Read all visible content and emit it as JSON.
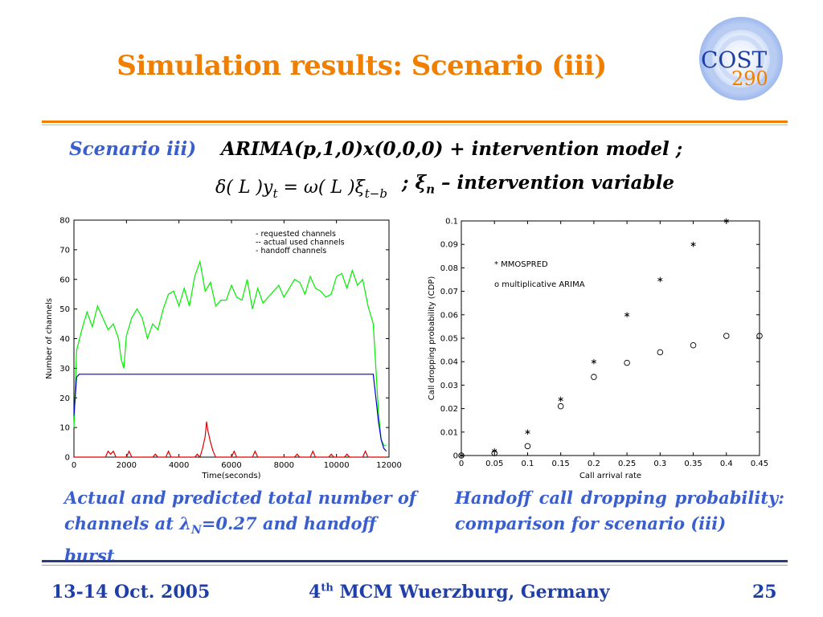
{
  "slide": {
    "title": "Simulation results: Scenario (iii)",
    "scenario_label": "Scenario iii)",
    "model_text": "ARIMA(p,1,0)x(0,0,0) +  intervention model ;",
    "formula": "δ( L )yₜ = ω( L )ξₜ₋ᵦ",
    "intervention_text": ";  ξ",
    "intervention_sub": "n",
    "intervention_rest": " – intervention variable",
    "caption_left_1": "Actual and predicted total number of",
    "caption_left_2a": "channels at λ",
    "caption_left_2sub": "N",
    "caption_left_2b": "=0.27 and handoff burst",
    "caption_right": "Handoff call dropping probability: comparison for scenario (iii)",
    "footer_date": "13-14 Oct. 2005",
    "footer_conf_pre": "4",
    "footer_conf_sup": "th",
    "footer_conf_post": " MCM Wuerzburg, Germany",
    "footer_page": "25",
    "logo_cost": "COST",
    "logo_num": "290"
  },
  "colors": {
    "title": "#f07f00",
    "blue_text": "#3a5fcd",
    "footer": "#1f3fa8",
    "rule_orange": "#f07f00",
    "series_green": "#00ee00",
    "series_blue": "#0000cc",
    "series_red": "#dd0000"
  },
  "chart_data": [
    {
      "type": "line",
      "title": "",
      "xlabel": "Time(seconds)",
      "ylabel": "Number of channels",
      "xlim": [
        0,
        12000
      ],
      "ylim": [
        0,
        80
      ],
      "xticks": [
        0,
        2000,
        4000,
        6000,
        8000,
        10000,
        12000
      ],
      "yticks": [
        0,
        10,
        20,
        30,
        40,
        50,
        60,
        70,
        80
      ],
      "legend_position": "top-right",
      "legend": [
        "- requested channels",
        "-- actual used channels",
        "- handoff channels"
      ],
      "series": [
        {
          "name": "requested channels",
          "color": "#00ee00",
          "x": [
            0,
            100,
            300,
            500,
            700,
            900,
            1100,
            1300,
            1500,
            1700,
            1800,
            1900,
            2000,
            2200,
            2400,
            2600,
            2800,
            3000,
            3200,
            3400,
            3600,
            3800,
            4000,
            4200,
            4400,
            4600,
            4800,
            5000,
            5200,
            5400,
            5600,
            5800,
            6000,
            6200,
            6400,
            6600,
            6800,
            7000,
            7200,
            7400,
            7600,
            7800,
            8000,
            8200,
            8400,
            8600,
            8800,
            9000,
            9200,
            9400,
            9600,
            9800,
            10000,
            10200,
            10400,
            10600,
            10800,
            11000,
            11200,
            11400,
            11500,
            11600,
            11700,
            11800,
            11900
          ],
          "values": [
            10,
            36,
            43,
            49,
            44,
            51,
            47,
            43,
            45,
            40,
            33,
            30,
            41,
            47,
            50,
            47,
            40,
            45,
            43,
            50,
            55,
            56,
            51,
            57,
            51,
            61,
            66,
            56,
            59,
            51,
            53,
            53,
            58,
            54,
            53,
            60,
            50,
            57,
            52,
            54,
            56,
            58,
            54,
            57,
            60,
            59,
            55,
            61,
            57,
            56,
            54,
            55,
            61,
            62,
            57,
            63,
            58,
            60,
            51,
            45,
            30,
            15,
            6,
            4,
            4
          ]
        },
        {
          "name": "actual used channels",
          "color": "#0000cc",
          "x": [
            0,
            100,
            200,
            11400,
            11500,
            11600,
            11700,
            11800,
            11900
          ],
          "values": [
            14,
            27,
            28,
            28,
            20,
            12,
            6,
            3,
            2
          ]
        },
        {
          "name": "handoff channels",
          "color": "#dd0000",
          "x": [
            0,
            1200,
            1300,
            1400,
            1500,
            1600,
            2000,
            2100,
            2200,
            3000,
            3100,
            3200,
            3500,
            3600,
            3700,
            4600,
            4700,
            4800,
            4900,
            5000,
            5050,
            5100,
            5200,
            5300,
            5400,
            6000,
            6100,
            6200,
            6800,
            6900,
            7000,
            8400,
            8500,
            8600,
            9000,
            9100,
            9200,
            9700,
            9800,
            9900,
            10300,
            10400,
            10500,
            11000,
            11100,
            11200,
            11900
          ],
          "values": [
            0,
            0,
            2,
            1,
            2,
            0,
            0,
            2,
            0,
            0,
            1,
            0,
            0,
            2,
            0,
            0,
            1,
            0,
            3,
            7,
            12,
            9,
            5,
            2,
            0,
            0,
            2,
            0,
            0,
            2,
            0,
            0,
            1,
            0,
            0,
            2,
            0,
            0,
            1,
            0,
            0,
            1,
            0,
            0,
            2,
            0,
            0
          ]
        }
      ]
    },
    {
      "type": "scatter",
      "title": "",
      "xlabel": "Call arrival rate",
      "ylabel": "Call dropping probability (CDP)",
      "xlim": [
        0,
        0.45
      ],
      "ylim": [
        0,
        0.1
      ],
      "xticks": [
        "0",
        "0.05",
        "0.1",
        "0.15",
        "0.2",
        "0.25",
        "0.3",
        "0.35",
        "0.4",
        "0.45"
      ],
      "yticks": [
        "0",
        "0.01",
        "0.02",
        "0.03",
        "0.04",
        "0.05",
        "0.06",
        "0.07",
        "0.08",
        "0.09",
        "0.1"
      ],
      "legend_position": "top-left",
      "legend": [
        "*  MMOSPRED",
        "o  multiplicative ARIMA"
      ],
      "series": [
        {
          "name": "MMOSPRED",
          "marker": "*",
          "x": [
            0,
            0.05,
            0.1,
            0.15,
            0.2,
            0.25,
            0.3,
            0.35,
            0.4
          ],
          "values": [
            0,
            0.002,
            0.01,
            0.024,
            0.04,
            0.06,
            0.075,
            0.09,
            0.1
          ]
        },
        {
          "name": "multiplicative ARIMA",
          "marker": "o",
          "x": [
            0,
            0.05,
            0.1,
            0.15,
            0.2,
            0.25,
            0.3,
            0.35,
            0.4,
            0.45
          ],
          "values": [
            0,
            0.001,
            0.004,
            0.021,
            0.0335,
            0.0395,
            0.044,
            0.047,
            0.051,
            0.051
          ]
        }
      ]
    }
  ]
}
